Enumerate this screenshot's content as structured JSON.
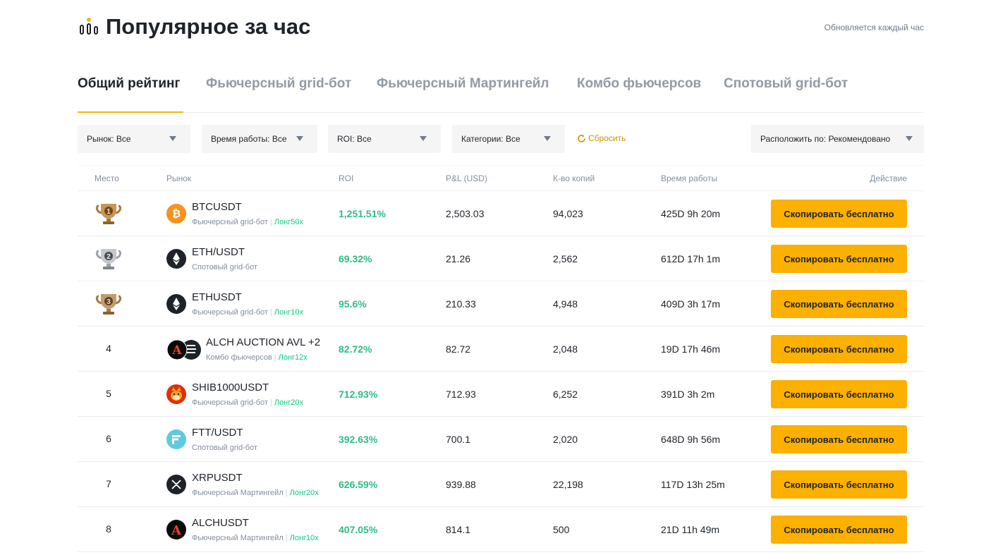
{
  "header": {
    "title": "Популярное за час",
    "update_note": "Обновляется каждый час",
    "icon": "bar-chart-icon"
  },
  "tabs": [
    {
      "label": "Общий рейтинг",
      "active": true
    },
    {
      "label": "Фьючерсный grid-бот",
      "active": false
    },
    {
      "label": "Фьючерсный Мартингейл",
      "active": false
    },
    {
      "label": "Комбо фьючерсов",
      "active": false
    },
    {
      "label": "Спотовый grid-бот",
      "active": false
    }
  ],
  "filters": {
    "market": "Рынок: Все",
    "runtime": "Время работы: Все",
    "roi": "ROI: Все",
    "category": "Категории: Все",
    "reset": "Сбросить",
    "sort": "Расположить по: Рекомендовано"
  },
  "table": {
    "headers": {
      "rank": "Место",
      "market": "Рынок",
      "roi": "ROI",
      "pnl": "P&L (USD)",
      "copies": "К-во копий",
      "runtime": "Время работы",
      "action": "Действие"
    },
    "action_label": "Скопировать бесплатно",
    "rows": [
      {
        "rank": "1",
        "trophy": "gold",
        "symbol": "BTCUSDT",
        "icon": "btc",
        "bot_type": "Фьючерсный grid-бот",
        "leverage": "Лонг50x",
        "roi": "1,251.51%",
        "pnl": "2,503.03",
        "copies": "94,023",
        "runtime": "425D 9h 20m"
      },
      {
        "rank": "2",
        "trophy": "silver",
        "symbol": "ETH/USDT",
        "icon": "eth",
        "bot_type": "Спотовый grid-бот",
        "leverage": "",
        "roi": "69.32%",
        "pnl": "21.26",
        "copies": "2,562",
        "runtime": "612D 17h 1m"
      },
      {
        "rank": "3",
        "trophy": "bronze",
        "symbol": "ETHUSDT",
        "icon": "eth",
        "bot_type": "Фьючерсный grid-бот",
        "leverage": "Лонг10x",
        "roi": "95.6%",
        "pnl": "210.33",
        "copies": "4,948",
        "runtime": "409D 3h 17m"
      },
      {
        "rank": "4",
        "trophy": "",
        "symbol": "ALCH AUCTION AVL +2",
        "icon": "alch-auction",
        "bot_type": "Комбо фьючерсов",
        "leverage": "Лонг12x",
        "roi": "82.72%",
        "pnl": "82.72",
        "copies": "2,048",
        "runtime": "19D 17h 46m"
      },
      {
        "rank": "5",
        "trophy": "",
        "symbol": "SHIB1000USDT",
        "icon": "shib",
        "bot_type": "Фьючерсный grid-бот",
        "leverage": "Лонг20x",
        "roi": "712.93%",
        "pnl": "712.93",
        "copies": "6,252",
        "runtime": "391D 3h 2m"
      },
      {
        "rank": "6",
        "trophy": "",
        "symbol": "FTT/USDT",
        "icon": "ftt",
        "bot_type": "Спотовый grid-бот",
        "leverage": "",
        "roi": "392.63%",
        "pnl": "700.1",
        "copies": "2,020",
        "runtime": "648D 9h 56m"
      },
      {
        "rank": "7",
        "trophy": "",
        "symbol": "XRPUSDT",
        "icon": "xrp",
        "bot_type": "Фьючерсный Мартингейл",
        "leverage": "Лонг20x",
        "roi": "626.59%",
        "pnl": "939.88",
        "copies": "22,198",
        "runtime": "117D 13h 25m"
      },
      {
        "rank": "8",
        "trophy": "",
        "symbol": "ALCHUSDT",
        "icon": "alch",
        "bot_type": "Фьючерсный Мартингейл",
        "leverage": "Лонг10x",
        "roi": "407.05%",
        "pnl": "814.1",
        "copies": "500",
        "runtime": "21D 11h 49m"
      }
    ]
  },
  "colors": {
    "accent": "#fcb000",
    "tab_underline": "#f0b90b",
    "positive": "#2ebd85",
    "leverage": "#0ecb81",
    "reset": "#c99400"
  }
}
